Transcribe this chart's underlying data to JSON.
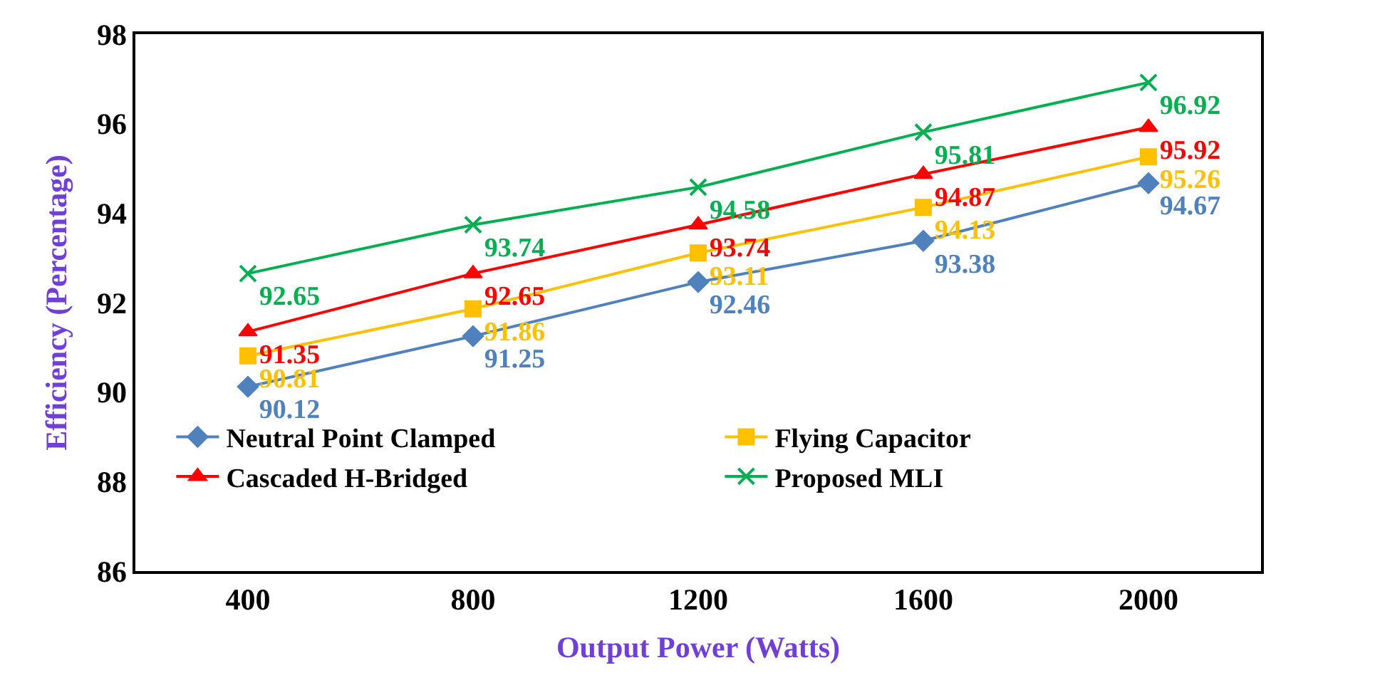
{
  "chart_data": {
    "type": "line",
    "xlabel": "Output Power (Watts)",
    "ylabel": "Efficiency (Percentage)",
    "categories": [
      "400",
      "800",
      "1200",
      "1600",
      "2000"
    ],
    "ylim": [
      86,
      98
    ],
    "yticks": [
      86,
      88,
      90,
      92,
      94,
      96,
      98
    ],
    "legend": "bottom",
    "data_labels": true,
    "line_style": "solid",
    "series": [
      {
        "name": "Neutral Point Clamped",
        "color": "#4f81bd",
        "marker": "diamond",
        "values": [
          90.12,
          91.25,
          92.46,
          93.38,
          94.67
        ]
      },
      {
        "name": "Flying Capacitor",
        "color": "#ffc000",
        "marker": "square",
        "values": [
          90.81,
          91.86,
          93.11,
          94.13,
          95.26
        ]
      },
      {
        "name": "Cascaded H-Bridged",
        "color": "#ff0000",
        "marker": "triangle",
        "values": [
          91.35,
          92.65,
          93.74,
          94.87,
          95.92
        ]
      },
      {
        "name": "Proposed MLI",
        "color": "#00b050",
        "marker": "cross",
        "values": [
          92.65,
          93.74,
          94.58,
          95.81,
          96.92
        ]
      }
    ]
  }
}
